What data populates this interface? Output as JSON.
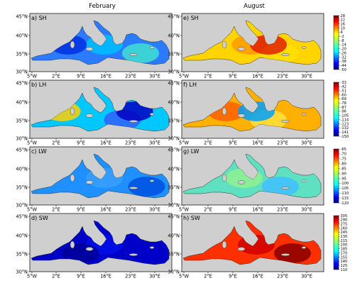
{
  "columns": [
    "February",
    "August"
  ],
  "x_ticks": [
    "5°W",
    "2°E",
    "9°E",
    "16°E",
    "23°E",
    "30°E"
  ],
  "y_ticks": [
    "45°N",
    "40°N",
    "35°N",
    "30°N"
  ],
  "colors": {
    "land": "#cfcfcf",
    "coast": "#333333",
    "frame": "#000000"
  },
  "rows": [
    {
      "variable": "SH",
      "panels": [
        {
          "label": "a) SH",
          "field": "sh_feb"
        },
        {
          "label": "e) SH",
          "field": "sh_aug"
        }
      ],
      "colorbar": {
        "min": -50,
        "max": 28,
        "ticks": [
          "28",
          "22",
          "16",
          "10",
          "4",
          "-2",
          "-8",
          "-14",
          "-20",
          "-26",
          "-32",
          "-38",
          "-44",
          "-50"
        ]
      }
    },
    {
      "variable": "LH",
      "panels": [
        {
          "label": "b) LH",
          "field": "lh_feb"
        },
        {
          "label": "f) LH",
          "field": "lh_aug"
        }
      ],
      "colorbar": {
        "min": -150,
        "max": -33,
        "ticks": [
          "-33",
          "-42",
          "-51",
          "-60",
          "-69",
          "-78",
          "-87",
          "-96",
          "-105",
          "-114",
          "-123",
          "-132",
          "-141",
          "-150"
        ]
      }
    },
    {
      "variable": "LW",
      "panels": [
        {
          "label": "c) LW",
          "field": "lw_feb"
        },
        {
          "label": "g) LW",
          "field": "lw_aug"
        }
      ],
      "colorbar": {
        "min": -120,
        "max": -65,
        "ticks": [
          "-65",
          "-70",
          "-75",
          "-80",
          "-85",
          "-90",
          "-95",
          "-100",
          "-105",
          "-110",
          "-115",
          "-120"
        ]
      }
    },
    {
      "variable": "SW",
      "panels": [
        {
          "label": "d) SW",
          "field": "sw_feb"
        },
        {
          "label": "h) SW",
          "field": "sw_aug"
        }
      ],
      "colorbar": {
        "min": 110,
        "max": 305,
        "ticks": [
          "305",
          "290",
          "275",
          "260",
          "245",
          "230",
          "215",
          "200",
          "185",
          "170",
          "155",
          "140",
          "125",
          "110"
        ]
      }
    }
  ]
}
